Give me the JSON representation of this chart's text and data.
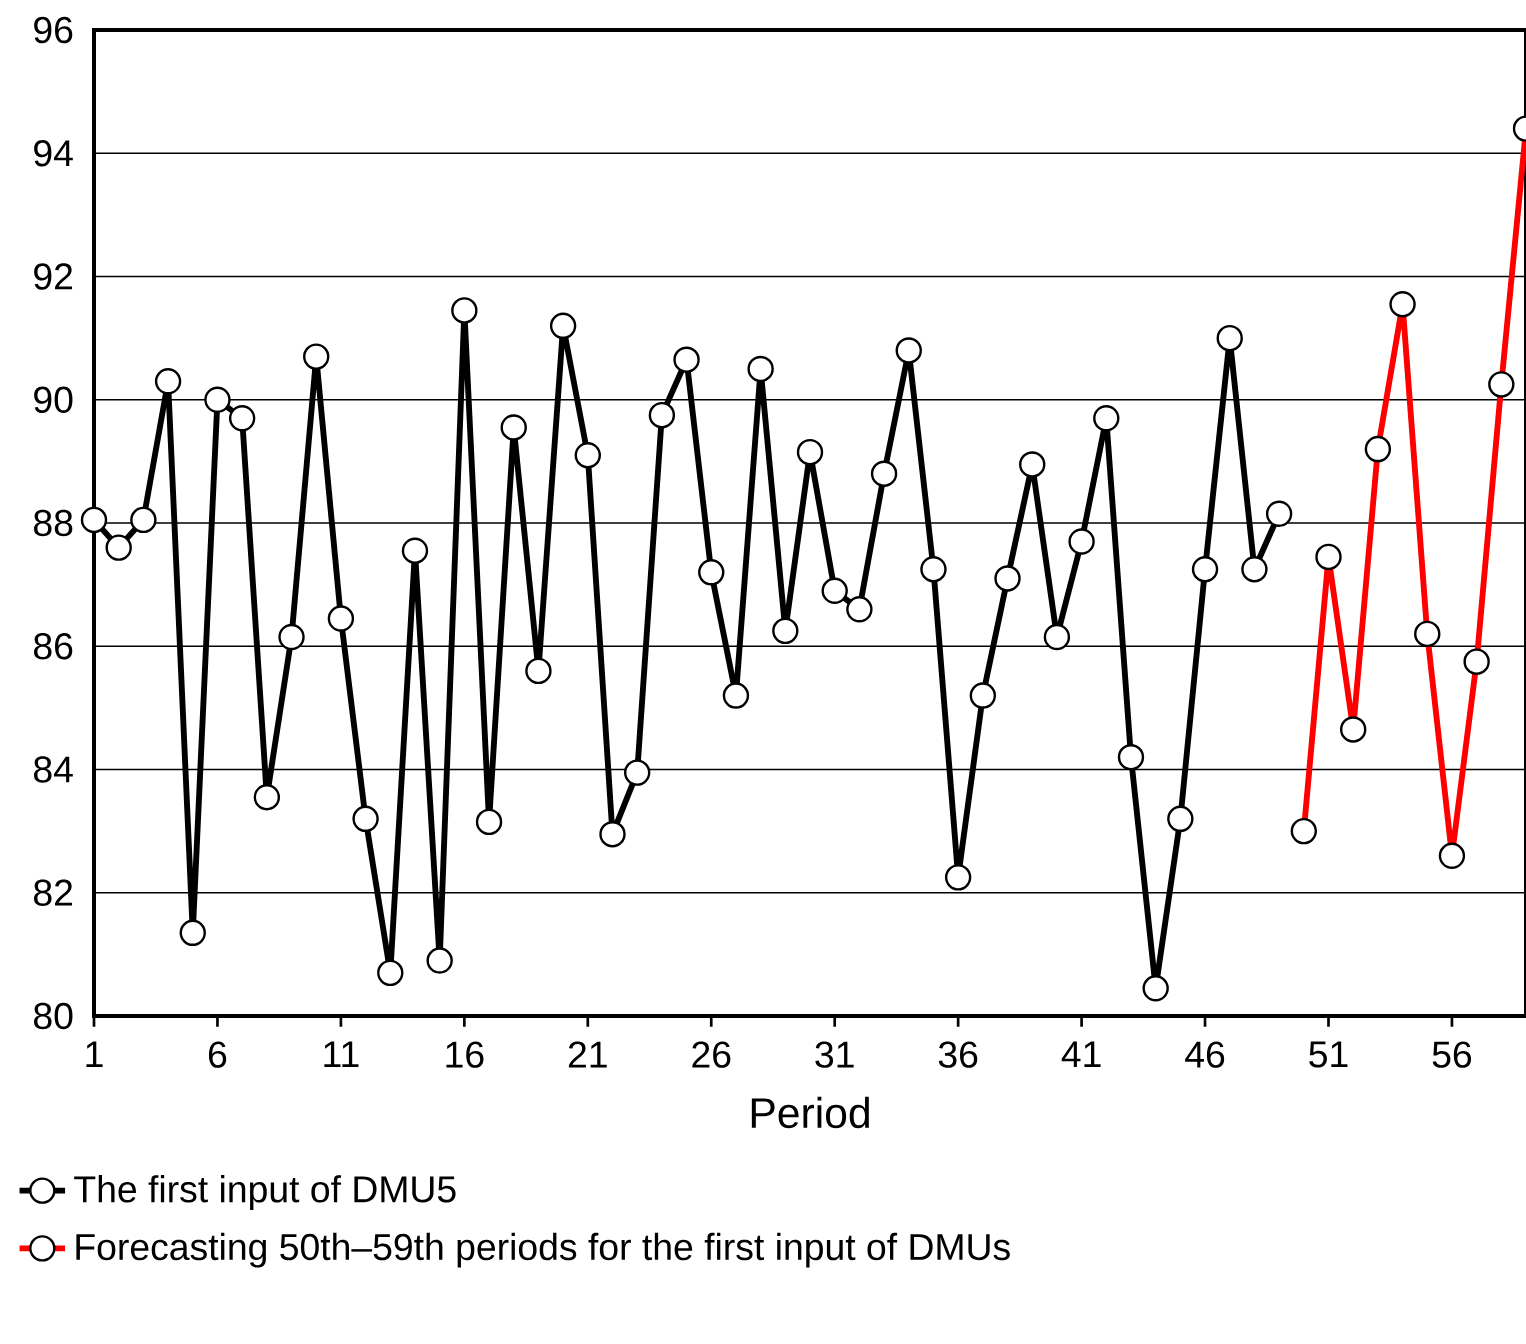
{
  "chart_data": {
    "type": "line",
    "xlabel": "Period",
    "series": [
      {
        "name": "The first input of DMU5",
        "color": "#000000",
        "x": [
          1,
          2,
          3,
          4,
          5,
          6,
          7,
          8,
          9,
          10,
          11,
          12,
          13,
          14,
          15,
          16,
          17,
          18,
          19,
          20,
          21,
          22,
          23,
          24,
          25,
          26,
          27,
          28,
          29,
          30,
          31,
          32,
          33,
          34,
          35,
          36,
          37,
          38,
          39,
          40,
          41,
          42,
          43,
          44,
          45,
          46,
          47,
          48,
          49
        ],
        "values": [
          88.05,
          87.6,
          88.05,
          90.3,
          81.35,
          90.0,
          89.7,
          83.55,
          86.15,
          90.7,
          86.45,
          83.2,
          80.7,
          87.55,
          80.9,
          91.45,
          83.15,
          89.55,
          85.6,
          91.2,
          89.1,
          82.95,
          83.95,
          89.75,
          90.65,
          87.2,
          85.2,
          90.5,
          86.25,
          89.15,
          86.9,
          86.6,
          88.8,
          90.8,
          87.25,
          82.25,
          85.2,
          87.1,
          88.95,
          86.15,
          87.7,
          89.7,
          84.2,
          80.45,
          83.2,
          87.25,
          91.0,
          87.25,
          88.15
        ]
      },
      {
        "name": "Forecasting 50th–59th periods for the first input of DMUs",
        "color": "#ff0000",
        "x": [
          50,
          51,
          52,
          53,
          54,
          55,
          56,
          57,
          58,
          59
        ],
        "values": [
          83.0,
          87.45,
          84.65,
          89.2,
          91.55,
          86.2,
          82.6,
          85.75,
          90.25,
          94.4
        ]
      }
    ],
    "xlim": [
      1,
      59
    ],
    "xticks": [
      1,
      6,
      11,
      16,
      21,
      26,
      31,
      36,
      41,
      46,
      51,
      56
    ],
    "ylim": [
      80,
      96
    ],
    "yticks": [
      80,
      82,
      84,
      86,
      88,
      90,
      92,
      94,
      96
    ],
    "grid": "y",
    "legend": "bottom",
    "marker": "circle",
    "line_style": "solid"
  }
}
